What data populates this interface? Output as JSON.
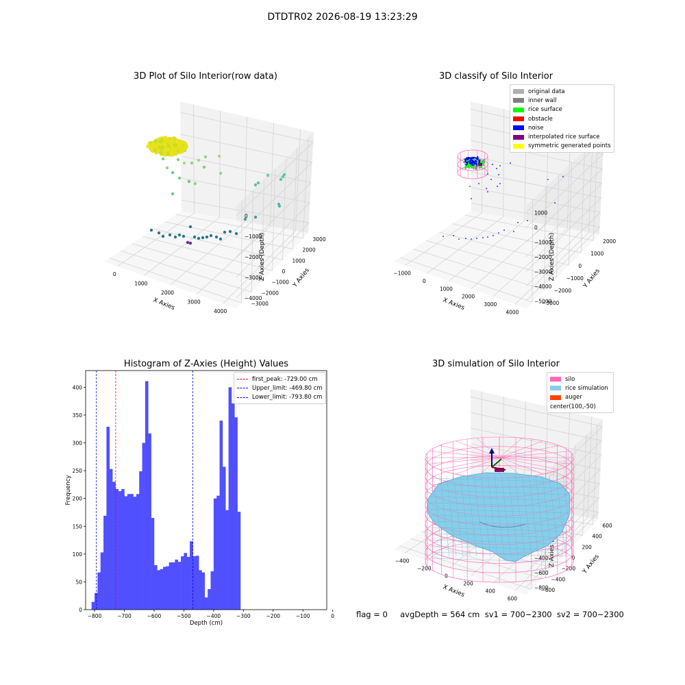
{
  "suptitle": "DTDTR02 2026-08-19 13:23:29",
  "colors": {
    "original": "#b0b0b0",
    "inner_wall": "#808080",
    "rice_surface": "#00ff00",
    "obstacle": "#ff0000",
    "noise": "#0000ff",
    "interpolated": "#800080",
    "symmetric": "#ffff00",
    "silo": "#ff69b4",
    "rice_sim": "#87ceeb",
    "auger": "#ff4500",
    "hist_bar": "#5050ff"
  },
  "chart_data": [
    {
      "type": "scatter",
      "title": "3D Plot of Silo Interior(row data)",
      "xlabel": "X Axies",
      "ylabel": "Y Axies",
      "zlabel": "Z Axies (Depth)",
      "x_ticks": [
        "0",
        "1000",
        "2000",
        "3000",
        "4000"
      ],
      "y_ticks": [
        "−3000",
        "−2000",
        "−1000",
        "0",
        "1000",
        "2000",
        "3000"
      ],
      "z_ticks": [
        "−4000",
        "−3000",
        "−2000",
        "−1000",
        "0"
      ]
    },
    {
      "type": "scatter",
      "title": "3D classify of Silo Interior",
      "xlabel": "X Axies",
      "ylabel": "Y Axies",
      "zlabel": "Z Axies (Depth)",
      "x_ticks": [
        "−1000",
        "0",
        "1000",
        "2000",
        "3000",
        "4000"
      ],
      "y_ticks": [
        "−3000",
        "−2000",
        "−1000",
        "0",
        "1000",
        "2000"
      ],
      "z_ticks": [
        "−5000",
        "−4000",
        "−3000",
        "−2000",
        "−1000",
        "0",
        "1000"
      ],
      "legend": [
        "original data",
        "inner wall",
        "rice surface",
        "obstacle",
        "noise",
        "interpolated rice surface",
        "symmetric generated points"
      ],
      "legend_position": "top-right"
    },
    {
      "type": "bar",
      "title": "Histogram of Z-Axies (Height) Values",
      "xlabel": "Depth (cm)",
      "ylabel": "Frequency",
      "bin_start": -810,
      "bin_width": 10,
      "values": [
        14,
        30,
        67,
        103,
        169,
        329,
        253,
        230,
        217,
        213,
        217,
        204,
        208,
        208,
        203,
        208,
        249,
        300,
        411,
        317,
        165,
        80,
        71,
        73,
        77,
        78,
        85,
        85,
        90,
        86,
        96,
        102,
        95,
        123,
        96,
        97,
        71,
        67,
        22,
        37,
        69,
        200,
        205,
        340,
        257,
        179,
        400,
        371,
        346,
        176
      ],
      "xlim": [
        -830,
        -20
      ],
      "ylim": [
        0,
        430
      ],
      "x_ticks": [
        -800,
        -700,
        -600,
        -500,
        -400,
        -300,
        -200,
        -100,
        0
      ],
      "y_ticks": [
        0,
        50,
        100,
        150,
        200,
        250,
        300,
        350,
        400
      ],
      "vlines": [
        {
          "label": "first_peak: -729.00 cm",
          "value": -729.0,
          "color": "#ff0000"
        },
        {
          "label": "Upper_limit: -469.80 cm",
          "value": -469.8,
          "color": "#0000ff"
        },
        {
          "label": "Lower_limit: -793.80 cm",
          "value": -793.8,
          "color": "#0000ff"
        }
      ],
      "legend_position": "top-right"
    },
    {
      "type": "area",
      "title": "3D simulation of Silo Interior",
      "xlabel": "X Axies",
      "ylabel": "Y Axies",
      "zlabel": "Z Axies (Depth)",
      "x_ticks": [
        "−400",
        "−200",
        "0",
        "200",
        "400",
        "600"
      ],
      "y_ticks": [
        "−600",
        "−400",
        "−200",
        "0",
        "200",
        "400",
        "600"
      ],
      "z_ticks": [
        "−800",
        "−600",
        "−400",
        "−200",
        "0",
        "200",
        "400"
      ],
      "legend": [
        "silo",
        "rice simulation",
        "auger",
        "center(100,-50)"
      ],
      "legend_position": "top-right"
    }
  ],
  "footer": "flag = 0     avgDepth = 564 cm  sv1 = 700~2300  sv2 = 700~2300"
}
